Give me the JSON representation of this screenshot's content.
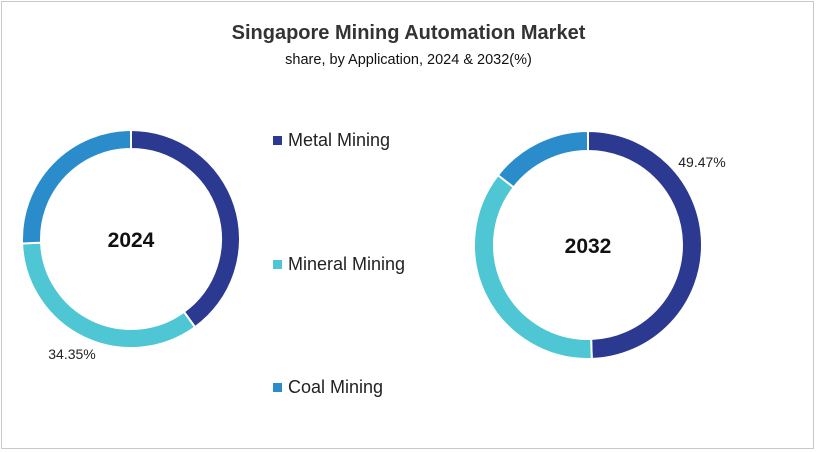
{
  "chart_data": {
    "type": "pie",
    "style": "donut",
    "title": "Singapore Mining Automation Market",
    "subtitle": "share, by Application, 2024 & 2032(%)",
    "categories": [
      "Metal Mining",
      "Mineral Mining",
      "Coal Mining"
    ],
    "colors": [
      "#2b3990",
      "#4fc6d3",
      "#2a8ccb"
    ],
    "legend_position": "center",
    "charts": [
      {
        "center_label": "2024",
        "values": [
          40.0,
          34.35,
          25.65
        ],
        "data_labels": [
          {
            "category": "Mineral Mining",
            "text": "34.35%"
          }
        ]
      },
      {
        "center_label": "2032",
        "values": [
          49.47,
          36.03,
          14.5
        ],
        "data_labels": [
          {
            "category": "Metal Mining",
            "text": "49.47%"
          }
        ]
      }
    ]
  }
}
